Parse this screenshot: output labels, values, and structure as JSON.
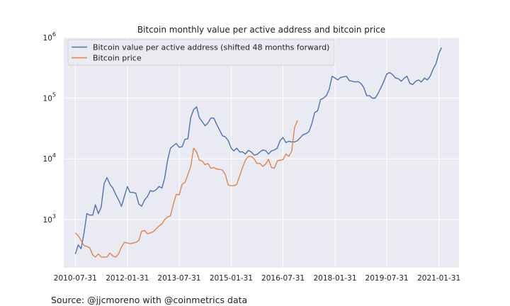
{
  "chart_data": {
    "type": "line",
    "title": "Bitcoin monthly value per active address and bitcoin price",
    "xlabel": "",
    "ylabel": "",
    "yscale": "log",
    "ylim": [
      160,
      1000000
    ],
    "xlim": [
      "2010-03-31",
      "2021-08-31"
    ],
    "grid": true,
    "legend_position": "top-left",
    "x_ticks": [
      "2010-07-31",
      "2012-01-31",
      "2013-07-31",
      "2015-01-31",
      "2016-07-31",
      "2018-01-31",
      "2019-07-31",
      "2021-01-31"
    ],
    "y_ticks": [
      {
        "value": 1000,
        "label": "10",
        "exp": "3"
      },
      {
        "value": 10000,
        "label": "10",
        "exp": "4"
      },
      {
        "value": 100000,
        "label": "10",
        "exp": "5"
      },
      {
        "value": 1000000,
        "label": "10",
        "exp": "6"
      }
    ],
    "series": [
      {
        "name": "Bitcoin value per active address (shifted 48 months forward)",
        "color": "#4c72b0",
        "x": [
          "2010-07-31",
          "2010-08-31",
          "2010-09-30",
          "2010-10-31",
          "2010-11-30",
          "2010-12-31",
          "2011-01-31",
          "2011-02-28",
          "2011-03-31",
          "2011-04-30",
          "2011-05-31",
          "2011-06-30",
          "2011-07-31",
          "2011-08-31",
          "2011-09-30",
          "2011-10-31",
          "2011-11-30",
          "2011-12-31",
          "2012-01-31",
          "2012-02-29",
          "2012-03-31",
          "2012-04-30",
          "2012-05-31",
          "2012-06-30",
          "2012-07-31",
          "2012-08-31",
          "2012-09-30",
          "2012-10-31",
          "2012-11-30",
          "2012-12-31",
          "2013-01-31",
          "2013-02-28",
          "2013-03-31",
          "2013-04-30",
          "2013-05-31",
          "2013-06-30",
          "2013-07-31",
          "2013-08-31",
          "2013-09-30",
          "2013-10-31",
          "2013-11-30",
          "2013-12-31",
          "2014-01-31",
          "2014-02-28",
          "2014-03-31",
          "2014-04-30",
          "2014-05-31",
          "2014-06-30",
          "2014-07-31",
          "2014-08-31",
          "2014-09-30",
          "2014-10-31",
          "2014-11-30",
          "2014-12-31",
          "2015-01-31",
          "2015-02-28",
          "2015-03-31",
          "2015-04-30",
          "2015-05-31",
          "2015-06-30",
          "2015-07-31",
          "2015-08-31",
          "2015-09-30",
          "2015-10-31",
          "2015-11-30",
          "2015-12-31",
          "2016-01-31",
          "2016-02-29",
          "2016-03-31",
          "2016-04-30",
          "2016-05-31",
          "2016-06-30",
          "2016-07-31",
          "2016-08-31",
          "2016-09-30",
          "2016-10-31",
          "2016-11-30",
          "2016-12-31",
          "2017-01-31",
          "2017-02-28",
          "2017-03-31",
          "2017-04-30",
          "2017-05-31",
          "2017-06-30",
          "2017-07-31",
          "2017-08-31",
          "2017-09-30",
          "2017-10-31",
          "2017-11-30",
          "2017-12-31",
          "2018-01-31",
          "2018-02-28",
          "2018-03-31",
          "2018-04-30",
          "2018-05-31",
          "2018-06-30",
          "2018-07-31",
          "2018-08-31",
          "2018-09-30",
          "2018-10-31",
          "2018-11-30",
          "2018-12-31",
          "2019-01-31",
          "2019-02-28",
          "2019-03-31",
          "2019-04-30",
          "2019-05-31",
          "2019-06-30",
          "2019-07-31",
          "2019-08-31",
          "2019-09-30",
          "2019-10-31",
          "2019-11-30",
          "2019-12-31",
          "2020-01-31",
          "2020-02-29",
          "2020-03-31",
          "2020-04-30",
          "2020-05-31",
          "2020-06-30",
          "2020-07-31",
          "2020-08-31",
          "2020-09-30",
          "2020-10-31",
          "2020-11-30",
          "2020-12-31",
          "2021-01-31",
          "2021-02-28"
        ],
        "y": [
          270,
          380,
          330,
          600,
          1250,
          1180,
          1180,
          1750,
          1250,
          1600,
          3900,
          4900,
          3800,
          3300,
          2600,
          2100,
          1650,
          2400,
          3500,
          2800,
          2800,
          2700,
          1800,
          1650,
          2100,
          2400,
          3000,
          2900,
          3100,
          3500,
          3300,
          4800,
          9500,
          15000,
          16500,
          18000,
          15500,
          15800,
          21000,
          21500,
          48000,
          65000,
          72000,
          48000,
          41000,
          35000,
          39000,
          47000,
          47000,
          37000,
          30000,
          24000,
          23000,
          20000,
          15000,
          13500,
          15000,
          13000,
          13000,
          12000,
          13800,
          13000,
          11500,
          11800,
          13000,
          14000,
          13600,
          12000,
          13500,
          14000,
          15000,
          20000,
          22500,
          18500,
          19500,
          19000,
          19000,
          20000,
          22500,
          25000,
          26000,
          28000,
          38000,
          58000,
          62000,
          95000,
          100000,
          110000,
          140000,
          230000,
          215000,
          200000,
          220000,
          225000,
          230000,
          195000,
          190000,
          185000,
          188000,
          175000,
          150000,
          110000,
          110000,
          100000,
          100000,
          120000,
          150000,
          190000,
          250000,
          265000,
          245000,
          215000,
          210000,
          190000,
          215000,
          230000,
          175000,
          168000,
          190000,
          200000,
          185000,
          215000,
          200000,
          230000,
          300000,
          370000,
          550000,
          680000
        ]
      },
      {
        "name": "Bitcoin price",
        "color": "#dd8452",
        "x": [
          "2010-07-31",
          "2010-08-31",
          "2010-09-30",
          "2010-10-31",
          "2010-11-30",
          "2010-12-31",
          "2011-01-31",
          "2011-02-28",
          "2011-03-31",
          "2011-04-30",
          "2011-05-31",
          "2011-06-30",
          "2011-07-31",
          "2011-08-31",
          "2011-09-30",
          "2011-10-31",
          "2011-11-30",
          "2011-12-31",
          "2012-01-31",
          "2012-02-29",
          "2012-03-31",
          "2012-04-30",
          "2012-05-31",
          "2012-06-30",
          "2012-07-31",
          "2012-08-31",
          "2012-09-30",
          "2012-10-31",
          "2012-11-30",
          "2012-12-31",
          "2013-01-31",
          "2013-02-28",
          "2013-03-31",
          "2013-04-30",
          "2013-05-31",
          "2013-06-30",
          "2013-07-31",
          "2013-08-31",
          "2013-09-30",
          "2013-10-31",
          "2013-11-30",
          "2013-12-31",
          "2014-01-31",
          "2014-02-28",
          "2014-03-31",
          "2014-04-30",
          "2014-05-31",
          "2014-06-30",
          "2014-07-31",
          "2014-08-31",
          "2014-09-30",
          "2014-10-31",
          "2014-11-30",
          "2014-12-31",
          "2015-01-31",
          "2015-02-28",
          "2015-03-31",
          "2015-04-30",
          "2015-05-31",
          "2015-06-30",
          "2015-07-31",
          "2015-08-31",
          "2015-09-30",
          "2015-10-31",
          "2015-11-30",
          "2015-12-31",
          "2016-01-31",
          "2016-02-29",
          "2016-03-31",
          "2016-04-30",
          "2016-05-31",
          "2016-06-30",
          "2016-07-31",
          "2016-08-31",
          "2016-09-30",
          "2016-10-31",
          "2016-11-30",
          "2016-12-31"
        ],
        "y": [
          600,
          540,
          450,
          370,
          360,
          340,
          260,
          240,
          270,
          240,
          240,
          240,
          280,
          250,
          240,
          270,
          350,
          420,
          410,
          400,
          410,
          420,
          450,
          640,
          660,
          580,
          600,
          630,
          700,
          780,
          850,
          1000,
          1100,
          1150,
          1800,
          2600,
          2550,
          3800,
          4100,
          5500,
          7500,
          15000,
          13000,
          9500,
          9200,
          8000,
          8400,
          7000,
          7200,
          6800,
          6700,
          6500,
          5500,
          3700,
          3600,
          3600,
          3800,
          5200,
          7200,
          9500,
          11000,
          11000,
          10000,
          8400,
          8400,
          7500,
          8300,
          9800,
          7200,
          7000,
          9200,
          9500,
          9700,
          12000,
          11000,
          13500,
          33000,
          43000
        ]
      }
    ]
  },
  "footer": {
    "source": "Source: @jjcmoreno with @coinmetrics data"
  }
}
